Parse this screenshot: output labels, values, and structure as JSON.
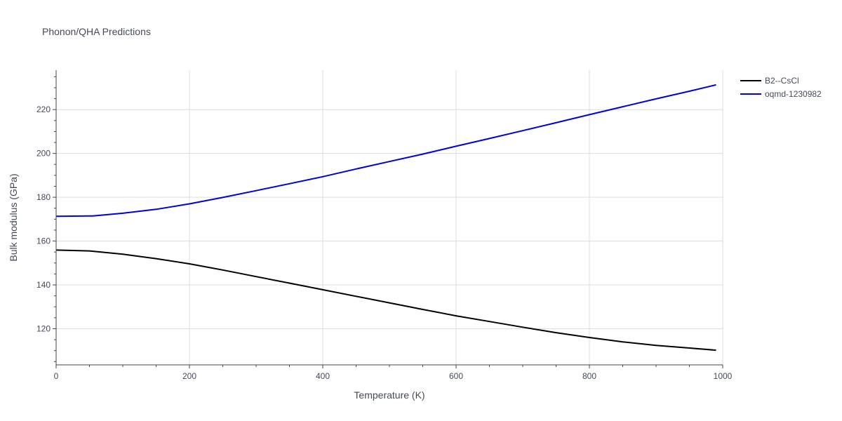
{
  "chart_data": {
    "type": "line",
    "title": "Phonon/QHA Predictions",
    "xlabel": "Temperature (K)",
    "ylabel": "Bulk modulus (GPa)",
    "xlim": [
      0,
      1000
    ],
    "ylim": [
      103.5,
      238
    ],
    "xticks": [
      0,
      200,
      400,
      600,
      800,
      1000
    ],
    "yticks": [
      120,
      140,
      160,
      180,
      200,
      220
    ],
    "grid": true,
    "legend_position": "top-right",
    "series": [
      {
        "name": "B2--CsCl",
        "color": "#000000",
        "x": [
          0,
          50,
          100,
          150,
          200,
          250,
          300,
          350,
          400,
          450,
          500,
          550,
          600,
          650,
          700,
          750,
          800,
          850,
          900,
          950,
          990
        ],
        "y": [
          155.9,
          155.5,
          154.0,
          152.0,
          149.6,
          146.8,
          143.8,
          140.8,
          137.8,
          134.8,
          131.8,
          128.8,
          125.9,
          123.3,
          120.7,
          118.2,
          116.0,
          114.0,
          112.4,
          111.2,
          110.2
        ]
      },
      {
        "name": "oqmd-1230982",
        "color": "#0000dd",
        "x": [
          0,
          25,
          55,
          100,
          150,
          200,
          250,
          300,
          350,
          400,
          450,
          500,
          550,
          600,
          650,
          700,
          750,
          800,
          850,
          900,
          950,
          990
        ],
        "y": [
          171.3,
          171.4,
          171.5,
          172.7,
          174.5,
          177.0,
          179.9,
          183.0,
          186.2,
          189.4,
          192.9,
          196.3,
          199.7,
          203.3,
          206.8,
          210.4,
          214.0,
          217.7,
          221.3,
          224.9,
          228.4,
          231.3
        ]
      }
    ]
  }
}
